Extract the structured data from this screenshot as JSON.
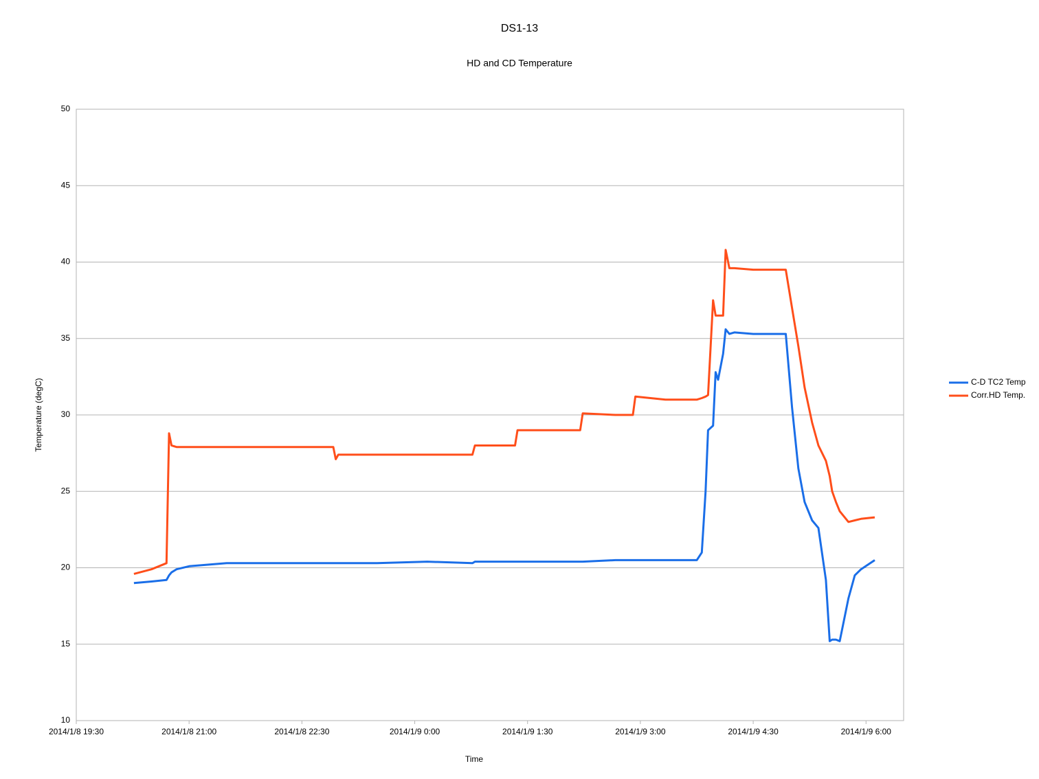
{
  "chart_data": {
    "type": "line",
    "title": "DS1-13",
    "subtitle": "HD and CD Temperature",
    "x_label": "Time",
    "y_label": "Temperature (degC)",
    "x": [
      "2014/1/8 20:16",
      "2014/1/8 20:30",
      "2014/1/8 20:42",
      "2014/1/8 20:44",
      "2014/1/8 20:46",
      "2014/1/8 20:50",
      "2014/1/8 21:00",
      "2014/1/8 21:30",
      "2014/1/8 22:00",
      "2014/1/8 22:30",
      "2014/1/8 22:55",
      "2014/1/8 22:57",
      "2014/1/8 22:59",
      "2014/1/8 23:30",
      "2014/1/9 0:10",
      "2014/1/9 0:46",
      "2014/1/9 0:48",
      "2014/1/9 1:20",
      "2014/1/9 1:22",
      "2014/1/9 1:50",
      "2014/1/9 2:12",
      "2014/1/9 2:14",
      "2014/1/9 2:40",
      "2014/1/9 2:54",
      "2014/1/9 2:56",
      "2014/1/9 3:20",
      "2014/1/9 3:45",
      "2014/1/9 3:49",
      "2014/1/9 3:52",
      "2014/1/9 3:54",
      "2014/1/9 3:58",
      "2014/1/9 4:00",
      "2014/1/9 4:02",
      "2014/1/9 4:06",
      "2014/1/9 4:08",
      "2014/1/9 4:11",
      "2014/1/9 4:15",
      "2014/1/9 4:30",
      "2014/1/9 4:56",
      "2014/1/9 5:01",
      "2014/1/9 5:06",
      "2014/1/9 5:11",
      "2014/1/9 5:17",
      "2014/1/9 5:22",
      "2014/1/9 5:28",
      "2014/1/9 5:31",
      "2014/1/9 5:33",
      "2014/1/9 5:36",
      "2014/1/9 5:39",
      "2014/1/9 5:46",
      "2014/1/9 5:51",
      "2014/1/9 5:56",
      "2014/1/9 6:07"
    ],
    "series": [
      {
        "name": "C-D TC2 Temp",
        "color": "#1a6ee8",
        "values": [
          19.0,
          19.1,
          19.2,
          19.5,
          19.7,
          19.9,
          20.1,
          20.3,
          20.3,
          20.3,
          20.3,
          20.3,
          20.3,
          20.3,
          20.4,
          20.3,
          20.4,
          20.4,
          20.4,
          20.4,
          20.4,
          20.4,
          20.5,
          20.5,
          20.5,
          20.5,
          20.5,
          21.0,
          25.0,
          29.0,
          29.3,
          32.8,
          32.3,
          34.0,
          35.6,
          35.3,
          35.4,
          35.3,
          35.3,
          30.5,
          26.5,
          24.3,
          23.1,
          22.6,
          19.2,
          15.2,
          15.3,
          15.3,
          15.2,
          18.0,
          19.5,
          19.9,
          20.5
        ]
      },
      {
        "name": "Corr.HD Temp.",
        "color": "#ff4e1a",
        "values": [
          19.6,
          19.9,
          20.3,
          28.8,
          28.0,
          27.9,
          27.9,
          27.9,
          27.9,
          27.9,
          27.9,
          27.1,
          27.4,
          27.4,
          27.4,
          27.4,
          28.0,
          28.0,
          29.0,
          29.0,
          29.0,
          30.1,
          30.0,
          30.0,
          31.2,
          31.0,
          31.0,
          31.1,
          31.2,
          31.3,
          37.5,
          36.5,
          36.5,
          36.5,
          40.8,
          39.6,
          39.6,
          39.5,
          39.5,
          37.0,
          34.5,
          31.8,
          29.5,
          28.0,
          27.0,
          26.0,
          25.0,
          24.3,
          23.7,
          23.0,
          23.1,
          23.2,
          23.3
        ]
      }
    ],
    "xlim": [
      "2014/1/8 19:30",
      "2014/1/9 6:30"
    ],
    "xticks": [
      "2014/1/8 19:30",
      "2014/1/8 21:00",
      "2014/1/8 22:30",
      "2014/1/9 0:00",
      "2014/1/9 1:30",
      "2014/1/9 3:00",
      "2014/1/9 4:30",
      "2014/1/9 6:00"
    ],
    "ylim": [
      10,
      50
    ],
    "yticks": [
      10,
      15,
      20,
      25,
      30,
      35,
      40,
      45,
      50
    ],
    "grid": true,
    "legend": "right"
  }
}
